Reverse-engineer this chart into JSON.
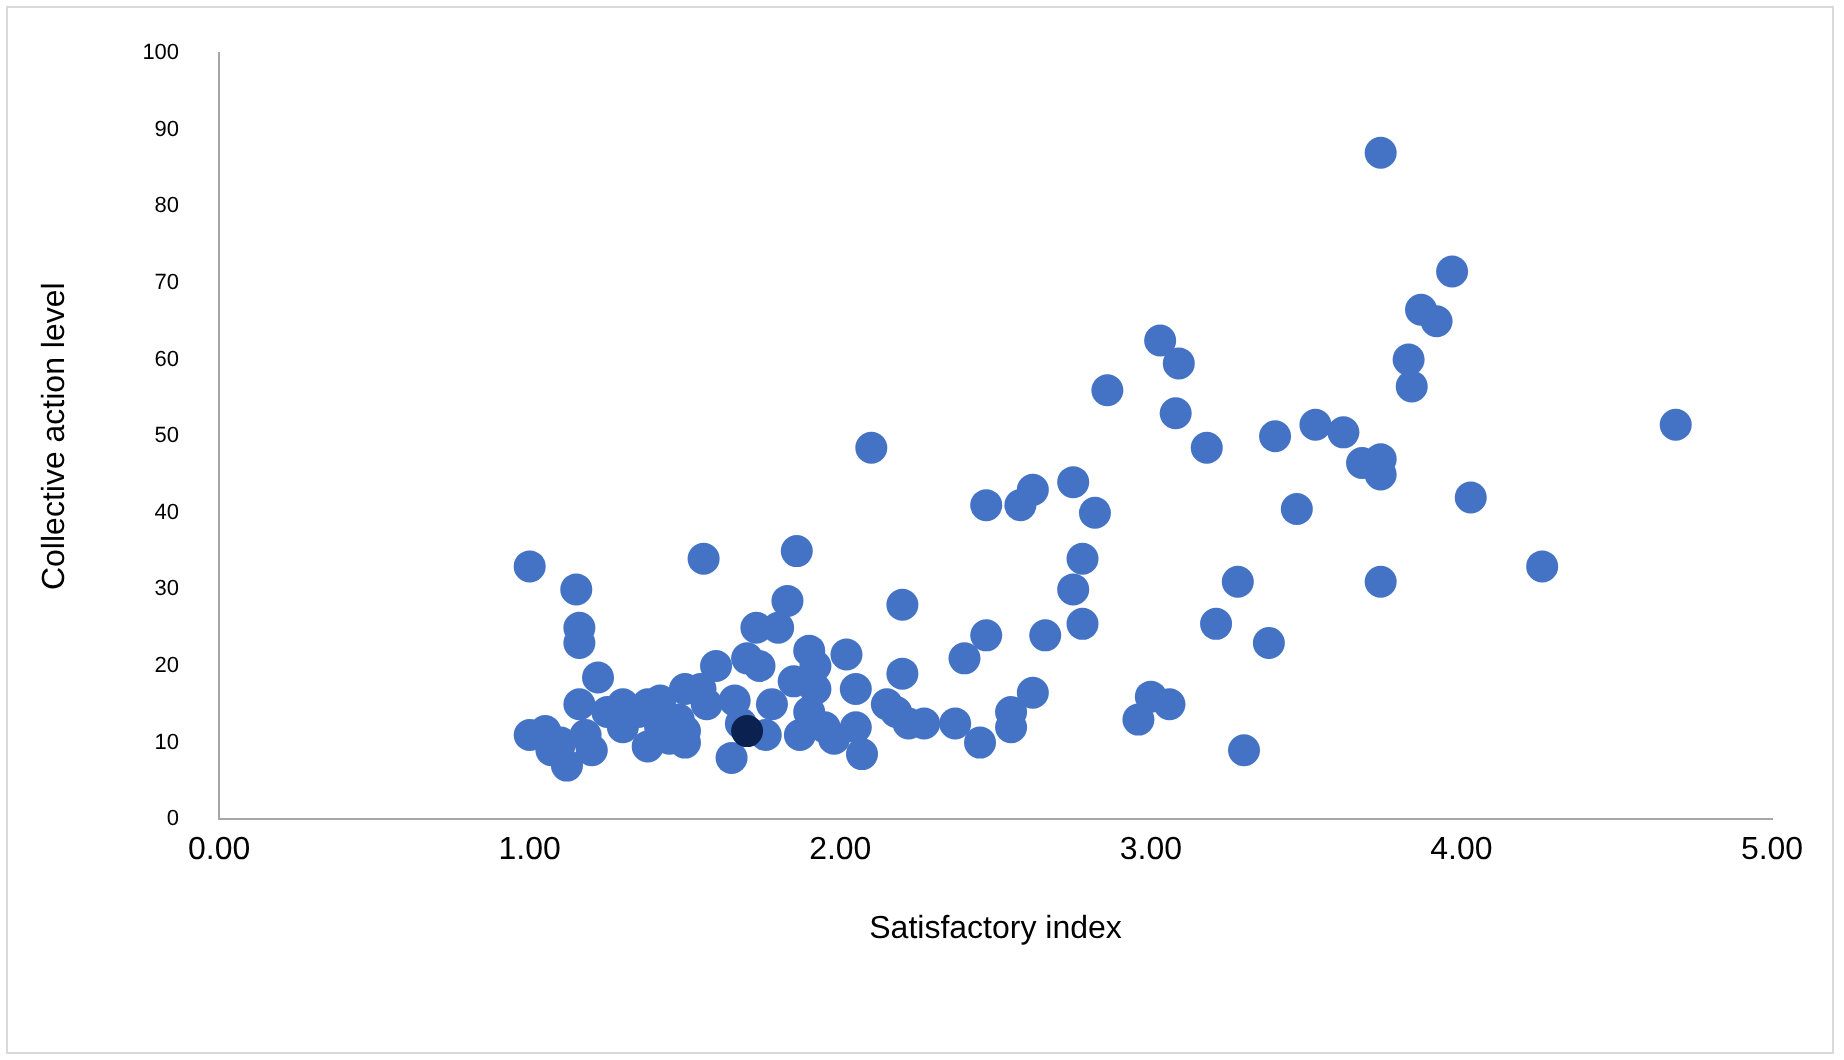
{
  "chart_data": {
    "type": "scatter",
    "xlabel": "Satisfactory index",
    "ylabel": "Collective action level",
    "xlim": [
      0,
      5
    ],
    "xticks": [
      {
        "value": 0,
        "label": "0.00"
      },
      {
        "value": 1,
        "label": "1.00"
      },
      {
        "value": 2,
        "label": "2.00"
      },
      {
        "value": 3,
        "label": "3.00"
      },
      {
        "value": 4,
        "label": "4.00"
      },
      {
        "value": 5,
        "label": "5.00"
      }
    ],
    "ylim": [
      0,
      100
    ],
    "yticks": [
      0,
      10,
      20,
      30,
      40,
      50,
      60,
      70,
      80,
      90,
      100
    ],
    "grid": false,
    "legend": false,
    "marker": "circle",
    "series": [
      {
        "color": "#4472c4",
        "x": [
          1.0,
          1.0,
          1.05,
          1.07,
          1.12,
          1.1,
          1.15,
          1.16,
          1.16,
          1.16,
          1.18,
          1.2,
          1.22,
          1.25,
          1.3,
          1.3,
          1.35,
          1.38,
          1.38,
          1.42,
          1.42,
          1.45,
          1.48,
          1.5,
          1.5,
          1.5,
          1.55,
          1.56,
          1.57,
          1.6,
          1.65,
          1.66,
          1.68,
          1.7,
          1.73,
          1.74,
          1.76,
          1.78,
          1.8,
          1.83,
          1.85,
          1.86,
          1.87,
          1.9,
          1.9,
          1.92,
          1.92,
          1.95,
          1.98,
          2.02,
          2.05,
          2.05,
          2.07,
          2.1,
          2.15,
          2.18,
          2.2,
          2.2,
          2.22,
          2.27,
          2.37,
          2.4,
          2.45,
          2.47,
          2.47,
          2.55,
          2.55,
          2.58,
          2.62,
          2.62,
          2.66,
          2.75,
          2.75,
          2.78,
          2.78,
          2.82,
          2.86,
          2.96,
          3.0,
          3.03,
          3.06,
          3.08,
          3.09,
          3.18,
          3.21,
          3.28,
          3.3,
          3.38,
          3.4,
          3.47,
          3.53,
          3.62,
          3.68,
          3.74,
          3.74,
          3.74,
          3.74,
          3.83,
          3.84,
          3.87,
          3.92,
          3.97,
          4.03,
          4.26,
          4.69
        ],
        "values": [
          33,
          11,
          11.5,
          9,
          7,
          10,
          30,
          25,
          23,
          15,
          11,
          9,
          18.5,
          14,
          12,
          15,
          14,
          15,
          9.5,
          15.5,
          12,
          10.5,
          13,
          17,
          11.5,
          10,
          17,
          34,
          15,
          20,
          8,
          15.5,
          12.5,
          21,
          25,
          20,
          11,
          15,
          25,
          28.5,
          18,
          35,
          11,
          22,
          14,
          17,
          20,
          12,
          10.5,
          21.5,
          12,
          17,
          8.5,
          48.5,
          15,
          14,
          28,
          19,
          12.5,
          12.5,
          12.5,
          21,
          10,
          41,
          24,
          14,
          12,
          41,
          16.5,
          43,
          24,
          44,
          30,
          34,
          25.5,
          40,
          56,
          13,
          16,
          62.5,
          15,
          53,
          59.5,
          48.5,
          25.5,
          31,
          9,
          23,
          50,
          40.5,
          51.5,
          50.5,
          46.5,
          87,
          47,
          45,
          31,
          60,
          56.5,
          66.5,
          65,
          71.5,
          42,
          33,
          51.5
        ]
      },
      {
        "color": "#0b2150",
        "x": [
          1.7
        ],
        "values": [
          11.5
        ]
      }
    ]
  }
}
